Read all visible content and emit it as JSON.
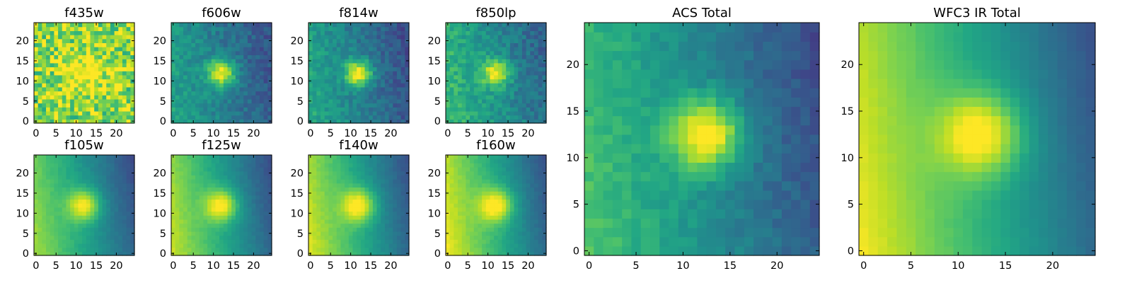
{
  "figure": {
    "cmap": "viridis",
    "seed": 73
  },
  "chart_data": [
    {
      "type": "heatmap",
      "title": "f435w",
      "x_ticks": [
        0,
        5,
        10,
        15,
        20
      ],
      "y_ticks": [
        0,
        5,
        10,
        15,
        20
      ],
      "xlim": [
        -0.5,
        24.5
      ],
      "ylim": [
        -0.5,
        24.5
      ],
      "grid_size": 25,
      "source_center": [
        12,
        12
      ],
      "sigma": 4.0,
      "peak": 0.25,
      "background": 0.82,
      "gradient_x": 0.0,
      "gradient_y": 0.0,
      "noise": 0.22
    },
    {
      "type": "heatmap",
      "title": "f606w",
      "x_ticks": [
        0,
        5,
        10,
        15,
        20
      ],
      "y_ticks": [
        0,
        5,
        10,
        15,
        20
      ],
      "xlim": [
        -0.5,
        24.5
      ],
      "ylim": [
        -0.5,
        24.5
      ],
      "grid_size": 25,
      "source_center": [
        12,
        12
      ],
      "sigma": 2.5,
      "peak": 0.55,
      "background": 0.42,
      "gradient_x": -0.012,
      "gradient_y": -0.002,
      "noise": 0.08
    },
    {
      "type": "heatmap",
      "title": "f814w",
      "x_ticks": [
        0,
        5,
        10,
        15,
        20
      ],
      "y_ticks": [
        0,
        5,
        10,
        15,
        20
      ],
      "xlim": [
        -0.5,
        24.5
      ],
      "ylim": [
        -0.5,
        24.5
      ],
      "grid_size": 25,
      "source_center": [
        12,
        12
      ],
      "sigma": 2.3,
      "peak": 0.6,
      "background": 0.42,
      "gradient_x": -0.014,
      "gradient_y": -0.002,
      "noise": 0.08
    },
    {
      "type": "heatmap",
      "title": "f850lp",
      "x_ticks": [
        0,
        5,
        10,
        15,
        20
      ],
      "y_ticks": [
        0,
        5,
        10,
        15,
        20
      ],
      "xlim": [
        -0.5,
        24.5
      ],
      "ylim": [
        -0.5,
        24.5
      ],
      "grid_size": 25,
      "source_center": [
        12,
        12
      ],
      "sigma": 2.4,
      "peak": 0.5,
      "background": 0.5,
      "gradient_x": -0.014,
      "gradient_y": -0.003,
      "noise": 0.09
    },
    {
      "type": "heatmap",
      "title": "f105w",
      "x_ticks": [
        0,
        5,
        10,
        15,
        20
      ],
      "y_ticks": [
        0,
        5,
        10,
        15,
        20
      ],
      "xlim": [
        -0.5,
        24.5
      ],
      "ylim": [
        -0.5,
        24.5
      ],
      "grid_size": 25,
      "source_center": [
        12,
        12
      ],
      "sigma": 2.8,
      "peak": 0.45,
      "background": 0.55,
      "gradient_x": -0.022,
      "gradient_y": -0.004,
      "noise": 0.02
    },
    {
      "type": "heatmap",
      "title": "f125w",
      "x_ticks": [
        0,
        5,
        10,
        15,
        20
      ],
      "y_ticks": [
        0,
        5,
        10,
        15,
        20
      ],
      "xlim": [
        -0.5,
        24.5
      ],
      "ylim": [
        -0.5,
        24.5
      ],
      "grid_size": 25,
      "source_center": [
        12,
        12
      ],
      "sigma": 2.8,
      "peak": 0.45,
      "background": 0.58,
      "gradient_x": -0.024,
      "gradient_y": -0.004,
      "noise": 0.02
    },
    {
      "type": "heatmap",
      "title": "f140w",
      "x_ticks": [
        0,
        5,
        10,
        15,
        20
      ],
      "y_ticks": [
        0,
        5,
        10,
        15,
        20
      ],
      "xlim": [
        -0.5,
        24.5
      ],
      "ylim": [
        -0.5,
        24.5
      ],
      "grid_size": 25,
      "source_center": [
        12,
        12
      ],
      "sigma": 2.9,
      "peak": 0.45,
      "background": 0.6,
      "gradient_x": -0.025,
      "gradient_y": -0.004,
      "noise": 0.02
    },
    {
      "type": "heatmap",
      "title": "f160w",
      "x_ticks": [
        0,
        5,
        10,
        15,
        20
      ],
      "y_ticks": [
        0,
        5,
        10,
        15,
        20
      ],
      "xlim": [
        -0.5,
        24.5
      ],
      "ylim": [
        -0.5,
        24.5
      ],
      "grid_size": 25,
      "source_center": [
        12,
        12
      ],
      "sigma": 2.9,
      "peak": 0.45,
      "background": 0.62,
      "gradient_x": -0.026,
      "gradient_y": -0.004,
      "noise": 0.02
    },
    {
      "type": "heatmap",
      "title": "ACS Total",
      "x_ticks": [
        0,
        5,
        10,
        15,
        20
      ],
      "y_ticks": [
        0,
        5,
        10,
        15,
        20
      ],
      "xlim": [
        -0.5,
        24.5
      ],
      "ylim": [
        -0.5,
        24.5
      ],
      "grid_size": 25,
      "source_center": [
        12.5,
        12.5
      ],
      "sigma": 2.6,
      "peak": 0.6,
      "background": 0.48,
      "gradient_x": -0.018,
      "gradient_y": -0.003,
      "noise": 0.05
    },
    {
      "type": "heatmap",
      "title": "WFC3 IR Total",
      "x_ticks": [
        0,
        5,
        10,
        15,
        20
      ],
      "y_ticks": [
        0,
        5,
        10,
        15,
        20
      ],
      "xlim": [
        -0.5,
        24.5
      ],
      "ylim": [
        -0.5,
        24.5
      ],
      "grid_size": 25,
      "source_center": [
        12.5,
        12.5
      ],
      "sigma": 3.0,
      "peak": 0.45,
      "background": 0.62,
      "gradient_x": -0.026,
      "gradient_y": -0.004,
      "noise": 0.01
    }
  ]
}
